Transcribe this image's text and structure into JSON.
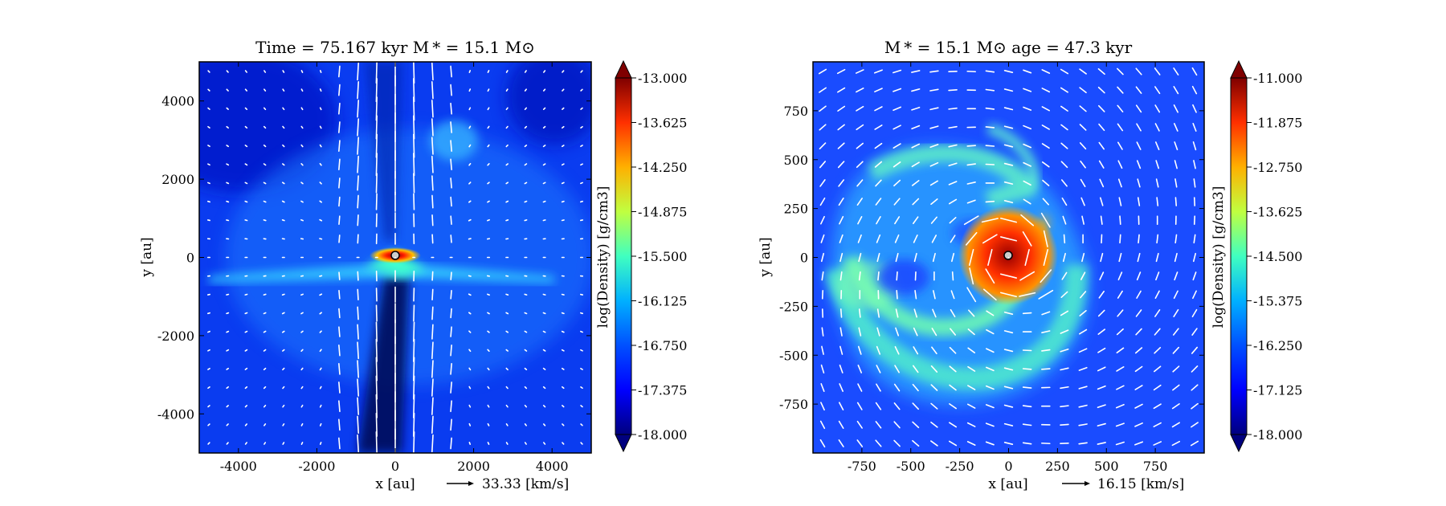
{
  "chart_data": [
    {
      "type": "heatmap",
      "title": "Time = 75.167 kyr    M *  = 15.1 M⊙",
      "xlabel": "x [au]",
      "ylabel": "y [au]",
      "xlim": [
        -5000,
        5000
      ],
      "ylim": [
        -5000,
        5000
      ],
      "xticks": [
        -4000,
        -2000,
        0,
        2000,
        4000
      ],
      "xtick_labels": [
        "-4000",
        "-2000",
        "0",
        "2000",
        "4000"
      ],
      "yticks": [
        4000,
        2000,
        0,
        -2000,
        -4000
      ],
      "ytick_labels": [
        "4000",
        "2000",
        "0",
        "-2000",
        "-4000"
      ],
      "colorbar": {
        "label": "log(Density) [g/cm3]",
        "min": -18.0,
        "max": -13.0,
        "ticks": [
          -13.0,
          -13.625,
          -14.25,
          -14.875,
          -15.5,
          -16.125,
          -16.75,
          -17.375,
          -18.0
        ],
        "tick_labels": [
          "-13.000",
          "-13.625",
          "-14.250",
          "-14.875",
          "-15.500",
          "-16.125",
          "-16.750",
          "-17.375",
          "-18.000"
        ]
      },
      "velocity_key": {
        "value": 33.33,
        "label": "33.33 [km/s]"
      },
      "structure": "edge-on view: dense disk midplane near y ≈ -500 au, central star at origin, bipolar low-density outflow cavities with fast vertical flow"
    },
    {
      "type": "heatmap",
      "title": "M *  = 15.1 M⊙          age = 47.3 kyr",
      "xlabel": "x [au]",
      "ylabel": "y [au]",
      "xlim": [
        -1000,
        1000
      ],
      "ylim": [
        -1000,
        1000
      ],
      "xticks": [
        -750,
        -500,
        -250,
        0,
        250,
        500,
        750
      ],
      "xtick_labels": [
        "-750",
        "-500",
        "-250",
        "0",
        "250",
        "500",
        "750"
      ],
      "yticks": [
        750,
        500,
        250,
        0,
        -250,
        -500,
        -750
      ],
      "ytick_labels": [
        "750",
        "500",
        "250",
        "0",
        "-250",
        "-500",
        "-750"
      ],
      "colorbar": {
        "label": "log(Density) [g/cm3]",
        "min": -18.0,
        "max": -11.0,
        "ticks": [
          -11.0,
          -11.875,
          -12.75,
          -13.625,
          -14.5,
          -15.375,
          -16.25,
          -17.125,
          -18.0
        ],
        "tick_labels": [
          "-11.000",
          "-11.875",
          "-12.750",
          "-13.625",
          "-14.500",
          "-15.375",
          "-16.250",
          "-17.125",
          "-18.000"
        ]
      },
      "velocity_key": {
        "value": 16.15,
        "label": "16.15 [km/s]"
      },
      "structure": "face-on view: dense central disk (r ≈ 150 au) with spiral arms extending to ~800 au, rotating velocity field"
    }
  ],
  "colormap": [
    "#00007f",
    "#0000ff",
    "#007fff",
    "#00ffff",
    "#7fff7f",
    "#ffff00",
    "#ff7f00",
    "#ff0000",
    "#7f0000"
  ]
}
